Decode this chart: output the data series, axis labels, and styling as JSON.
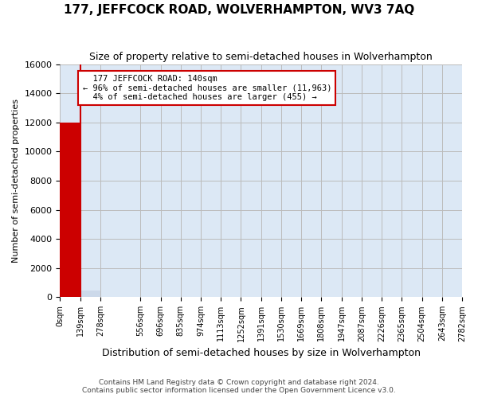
{
  "title": "177, JEFFCOCK ROAD, WOLVERHAMPTON, WV3 7AQ",
  "subtitle": "Size of property relative to semi-detached houses in Wolverhampton",
  "xlabel": "Distribution of semi-detached houses by size in Wolverhampton",
  "ylabel": "Number of semi-detached properties",
  "property_label": "177 JEFFCOCK ROAD: 140sqm",
  "smaller_pct": "96%",
  "smaller_count": 11963,
  "larger_pct": "4%",
  "larger_count": 455,
  "property_size": 140,
  "ylim": [
    0,
    16000
  ],
  "bar_edges": [
    0,
    139,
    278,
    417,
    556,
    696,
    835,
    974,
    1113,
    1252,
    1391,
    1530,
    1669,
    1808,
    1947,
    2087,
    2226,
    2365,
    2504,
    2643,
    2782
  ],
  "bar_values": [
    11963,
    455,
    10,
    5,
    3,
    2,
    1,
    1,
    1,
    0,
    0,
    0,
    0,
    0,
    0,
    0,
    0,
    0,
    0,
    0
  ],
  "bar_color_smaller": "#ccd9ea",
  "bar_color_property": "#cc0000",
  "bar_color_larger": "#ccd9ea",
  "property_bar_index": 0,
  "footnote": "Contains HM Land Registry data © Crown copyright and database right 2024.\nContains public sector information licensed under the Open Government Licence v3.0.",
  "xtick_positions": [
    0,
    139,
    278,
    556,
    696,
    835,
    974,
    1113,
    1252,
    1391,
    1530,
    1669,
    1808,
    1947,
    2087,
    2226,
    2365,
    2504,
    2643,
    2782
  ],
  "xtick_labels": [
    "0sqm",
    "139sqm",
    "278sqm",
    "556sqm",
    "696sqm",
    "835sqm",
    "974sqm",
    "1113sqm",
    "1252sqm",
    "1391sqm",
    "1530sqm",
    "1669sqm",
    "1808sqm",
    "1947sqm",
    "2087sqm",
    "2226sqm",
    "2365sqm",
    "2504sqm",
    "2643sqm",
    "2782sqm"
  ],
  "grid_color": "#bbbbbb",
  "bg_color": "#dce8f5"
}
